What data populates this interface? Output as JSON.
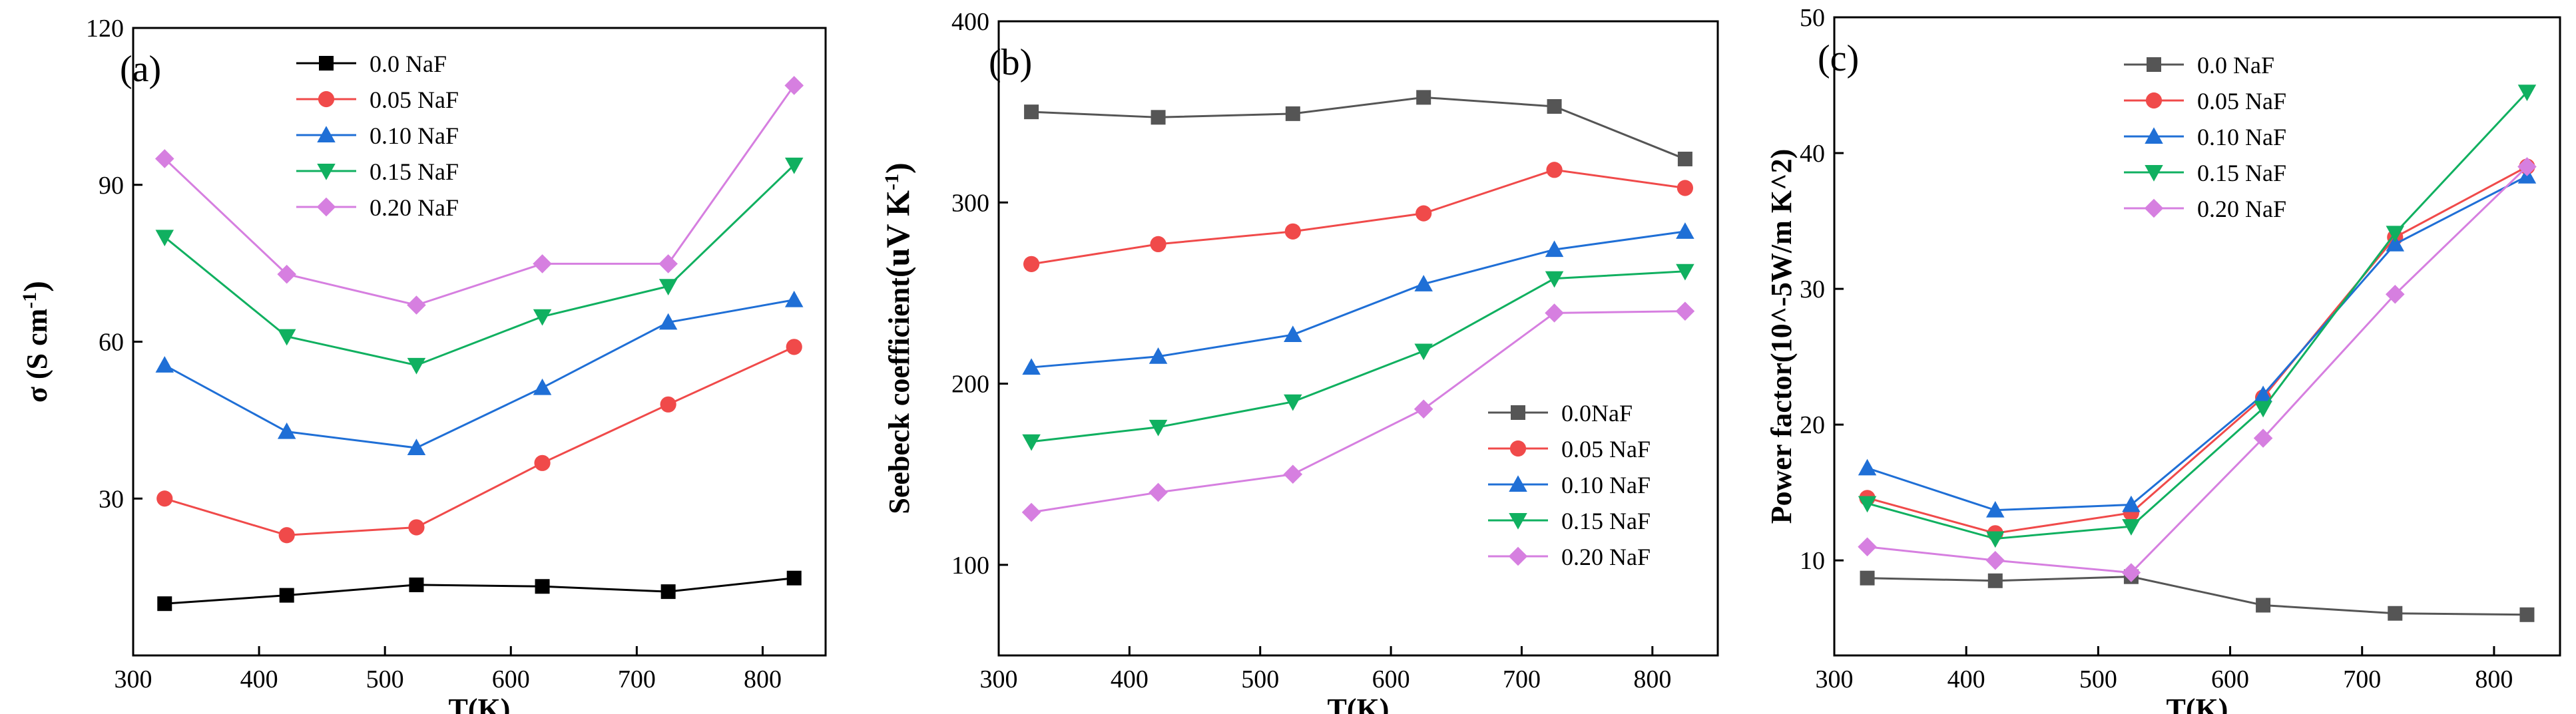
{
  "chart_data": [
    {
      "type": "line",
      "panel_label": "(a)",
      "xlabel": "T(K)",
      "ylabel": {
        "main": "σ (S cm",
        "sup": "-1",
        "tail": ")"
      },
      "xlim": [
        300,
        850
      ],
      "ylim": [
        0,
        120
      ],
      "xticks": [
        "300",
        "400",
        "500",
        "600",
        "700",
        "800"
      ],
      "yticks": [
        "30",
        "60",
        "90",
        "120"
      ],
      "legend_position": "top-center",
      "x": [
        325,
        422,
        525,
        625,
        725,
        825
      ],
      "series": [
        {
          "name": "0.0 NaF",
          "color": "#000000",
          "marker": "square",
          "values": [
            9.9,
            11.5,
            13.5,
            13.2,
            12.2,
            14.8
          ]
        },
        {
          "name": "0.05 NaF",
          "color": "#f04a4a",
          "marker": "circle",
          "values": [
            30.0,
            23.0,
            24.5,
            36.8,
            48.0,
            59.0
          ]
        },
        {
          "name": "0.10 NaF",
          "color": "#1f6fd6",
          "marker": "triangle-up",
          "values": [
            55.5,
            42.8,
            39.7,
            51.2,
            63.7,
            68.0
          ]
        },
        {
          "name": "0.15 NaF",
          "color": "#10b060",
          "marker": "triangle-down",
          "values": [
            80.0,
            61.0,
            55.5,
            64.8,
            70.6,
            93.8
          ]
        },
        {
          "name": "0.20 NaF",
          "color": "#d67fe0",
          "marker": "diamond",
          "values": [
            95.0,
            72.9,
            67.0,
            74.9,
            74.9,
            109.0
          ]
        }
      ]
    },
    {
      "type": "line",
      "panel_label": "(b)",
      "xlabel": "T(K)",
      "ylabel": {
        "main": "Seebeck coefficient",
        "paren": "(uV K",
        "sup": "-1",
        "tail": ")"
      },
      "xlim": [
        300,
        850
      ],
      "ylim": [
        50,
        400
      ],
      "xticks": [
        "300",
        "400",
        "500",
        "600",
        "700",
        "800"
      ],
      "yticks": [
        "100",
        "200",
        "300",
        "400"
      ],
      "legend_position": "bottom-right",
      "x": [
        325,
        422,
        525,
        625,
        725,
        825
      ],
      "series": [
        {
          "name": "0.0NaF",
          "color": "#555555",
          "marker": "square",
          "values": [
            350,
            347,
            349,
            358,
            353,
            324
          ]
        },
        {
          "name": "0.05 NaF",
          "color": "#f04a4a",
          "marker": "circle",
          "values": [
            266,
            277,
            284,
            294,
            318,
            308
          ]
        },
        {
          "name": "0.10 NaF",
          "color": "#1f6fd6",
          "marker": "triangle-up",
          "values": [
            209,
            215,
            227,
            255,
            274,
            284
          ]
        },
        {
          "name": "0.15 NaF",
          "color": "#10b060",
          "marker": "triangle-down",
          "values": [
            168,
            176,
            190,
            218,
            258,
            262
          ]
        },
        {
          "name": "0.20 NaF",
          "color": "#d67fe0",
          "marker": "diamond",
          "values": [
            129,
            140,
            150,
            186,
            239,
            240
          ]
        }
      ]
    },
    {
      "type": "line",
      "panel_label": "(c)",
      "xlabel": "T(K)",
      "ylabel": {
        "main": "Power factor(10^-5W/m K^2)"
      },
      "xlim": [
        300,
        850
      ],
      "ylim": [
        3,
        50
      ],
      "xticks": [
        "300",
        "400",
        "500",
        "600",
        "700",
        "800"
      ],
      "yticks": [
        "10",
        "20",
        "30",
        "40",
        "50"
      ],
      "legend_position": "top-center",
      "x": [
        325,
        422,
        525,
        625,
        725,
        825
      ],
      "series": [
        {
          "name": "0.0 NaF",
          "color": "#555555",
          "marker": "square",
          "values": [
            8.7,
            8.5,
            8.8,
            6.7,
            6.1,
            6.0
          ]
        },
        {
          "name": "0.05 NaF",
          "color": "#f04a4a",
          "marker": "circle",
          "values": [
            14.6,
            12.0,
            13.5,
            22.0,
            33.8,
            39.0
          ]
        },
        {
          "name": "0.10 NaF",
          "color": "#1f6fd6",
          "marker": "triangle-up",
          "values": [
            16.8,
            13.7,
            14.1,
            22.2,
            33.3,
            38.3
          ]
        },
        {
          "name": "0.15 NaF",
          "color": "#10b060",
          "marker": "triangle-down",
          "values": [
            14.2,
            11.6,
            12.5,
            21.2,
            34.1,
            44.5
          ]
        },
        {
          "name": "0.20 NaF",
          "color": "#d67fe0",
          "marker": "diamond",
          "values": [
            11.0,
            10.0,
            9.1,
            19.0,
            29.6,
            39.0
          ]
        }
      ]
    }
  ]
}
